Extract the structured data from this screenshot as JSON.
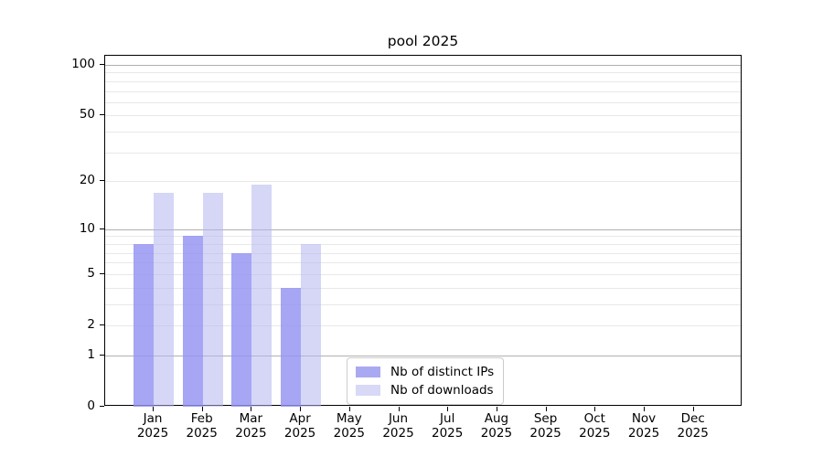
{
  "chart_data": {
    "type": "bar",
    "title": "pool 2025",
    "categories": [
      "Jan",
      "Feb",
      "Mar",
      "Apr",
      "May",
      "Jun",
      "Jul",
      "Aug",
      "Sep",
      "Oct",
      "Nov",
      "Dec"
    ],
    "category_year": "2025",
    "series": [
      {
        "name": "Nb of distinct IPs",
        "color": "rgba(147,147,241,0.82)",
        "legend_swatch_color": "#a9a9f2",
        "values": [
          8,
          9,
          7,
          4,
          0,
          0,
          0,
          0,
          0,
          0,
          0,
          0
        ]
      },
      {
        "name": "Nb of downloads",
        "color": "rgba(180,180,240,0.55)",
        "legend_swatch_color": "#d8d8f7",
        "values": [
          17,
          17,
          19,
          8,
          0,
          0,
          0,
          0,
          0,
          0,
          0,
          0
        ]
      }
    ],
    "xlabel": "",
    "ylabel": "",
    "y_scale": "log1p",
    "ylim": [
      0,
      113
    ],
    "y_tick_values": [
      100,
      50,
      20,
      10,
      5,
      2,
      1,
      0
    ],
    "y_tick_labels": [
      "100",
      "50",
      "20",
      "10",
      "5",
      "2",
      "1",
      "0"
    ],
    "grid": "on",
    "grid_major_values": [
      1,
      10,
      100
    ],
    "grid_minor_values": [
      2,
      3,
      4,
      5,
      6,
      7,
      8,
      9,
      20,
      30,
      40,
      50,
      60,
      70,
      80,
      90
    ],
    "legend_position": "lower center"
  },
  "colors": {
    "background": "#ffffff",
    "axis": "#000000",
    "grid_major": "#b0b0b0",
    "grid_minor": "#e8e8e8",
    "legend_border": "#cccccc",
    "text": "#000000"
  }
}
